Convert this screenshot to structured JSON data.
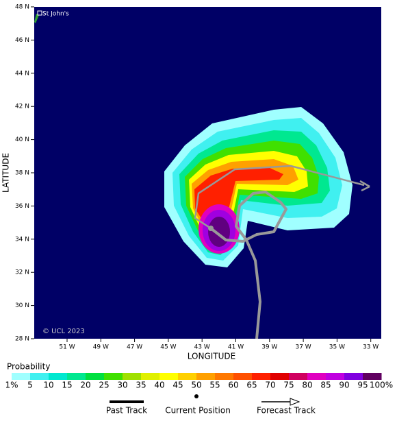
{
  "map": {
    "place": "St John's",
    "copyright": "© UCL 2023",
    "y_label": "LATITUDE",
    "x_label": "LONGITUDE",
    "lat_ticks": [
      "48 N",
      "46 N",
      "44 N",
      "42 N",
      "40 N",
      "38 N",
      "36 N",
      "34 N",
      "32 N",
      "30 N",
      "28 N"
    ],
    "lon_ticks": [
      "51 W",
      "49 W",
      "47 W",
      "45 W",
      "43 W",
      "41 W",
      "39 W",
      "37 W",
      "35 W",
      "33 W"
    ]
  },
  "colorbar": {
    "title": "Probability",
    "labels": [
      "1%",
      "5",
      "10",
      "15",
      "20",
      "25",
      "30",
      "35",
      "40",
      "45",
      "50",
      "55",
      "60",
      "65",
      "70",
      "75",
      "80",
      "85",
      "90",
      "95",
      "100%"
    ]
  },
  "legend": {
    "past": "Past Track",
    "current": "Current Position",
    "forecast": "Forecast Track"
  }
}
